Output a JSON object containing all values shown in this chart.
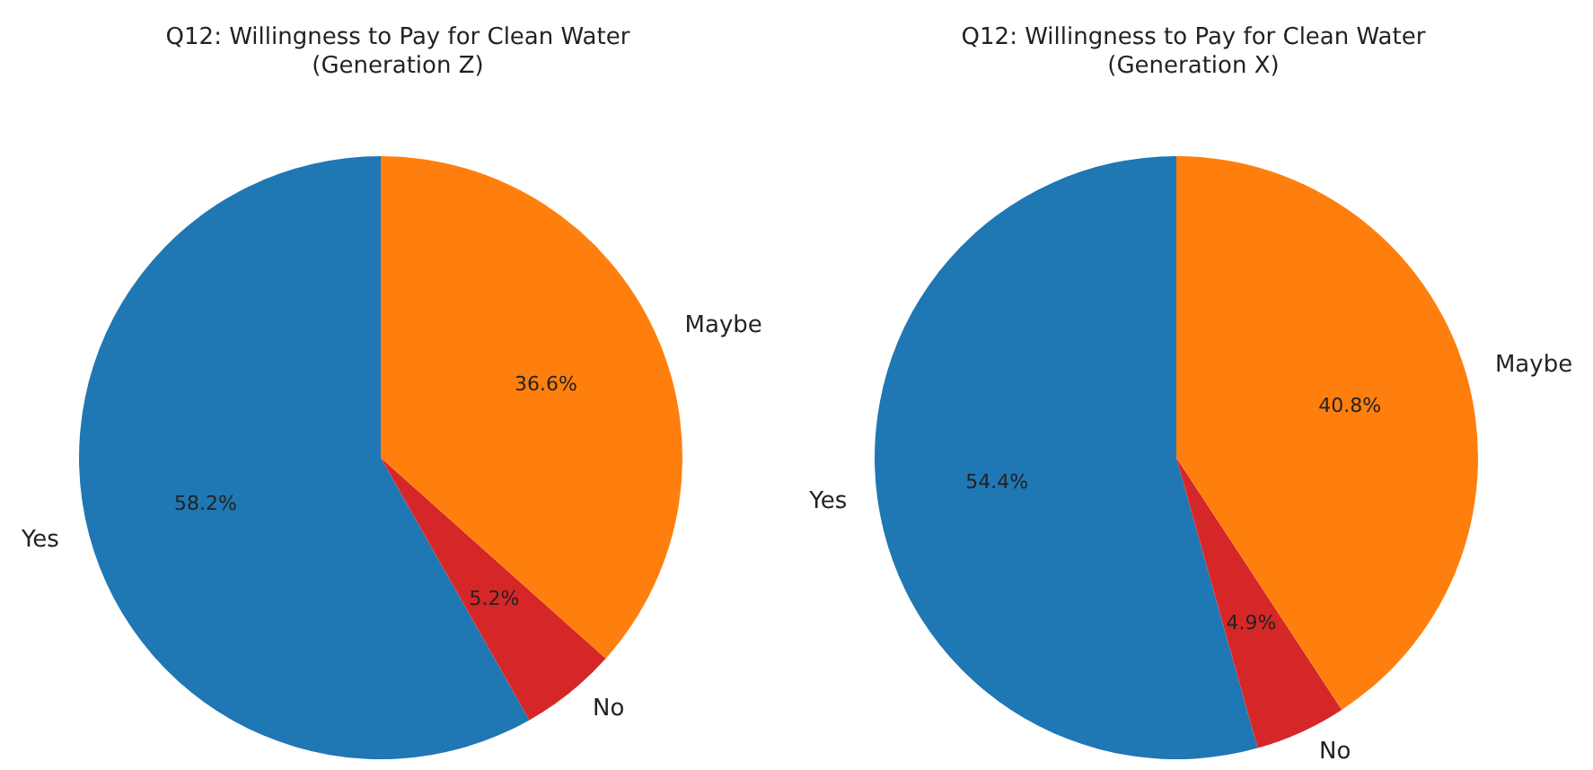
{
  "chart_data": [
    {
      "type": "pie",
      "title": "Q12: Willingness to Pay for Clean Water\n(Generation Z)",
      "categories": [
        "Yes",
        "No",
        "Maybe"
      ],
      "values": [
        58.2,
        5.2,
        36.6
      ],
      "colors": [
        "#1f77b4",
        "#d62728",
        "#ff7f0e"
      ],
      "value_labels": [
        "58.2%",
        "5.2%",
        "36.6%"
      ],
      "legend": false
    },
    {
      "type": "pie",
      "title": "Q12: Willingness to Pay for Clean Water\n(Generation X)",
      "categories": [
        "Yes",
        "No",
        "Maybe"
      ],
      "values": [
        54.4,
        4.9,
        40.8
      ],
      "colors": [
        "#1f77b4",
        "#d62728",
        "#ff7f0e"
      ],
      "value_labels": [
        "54.4%",
        "4.9%",
        "40.8%"
      ],
      "legend": false
    }
  ]
}
